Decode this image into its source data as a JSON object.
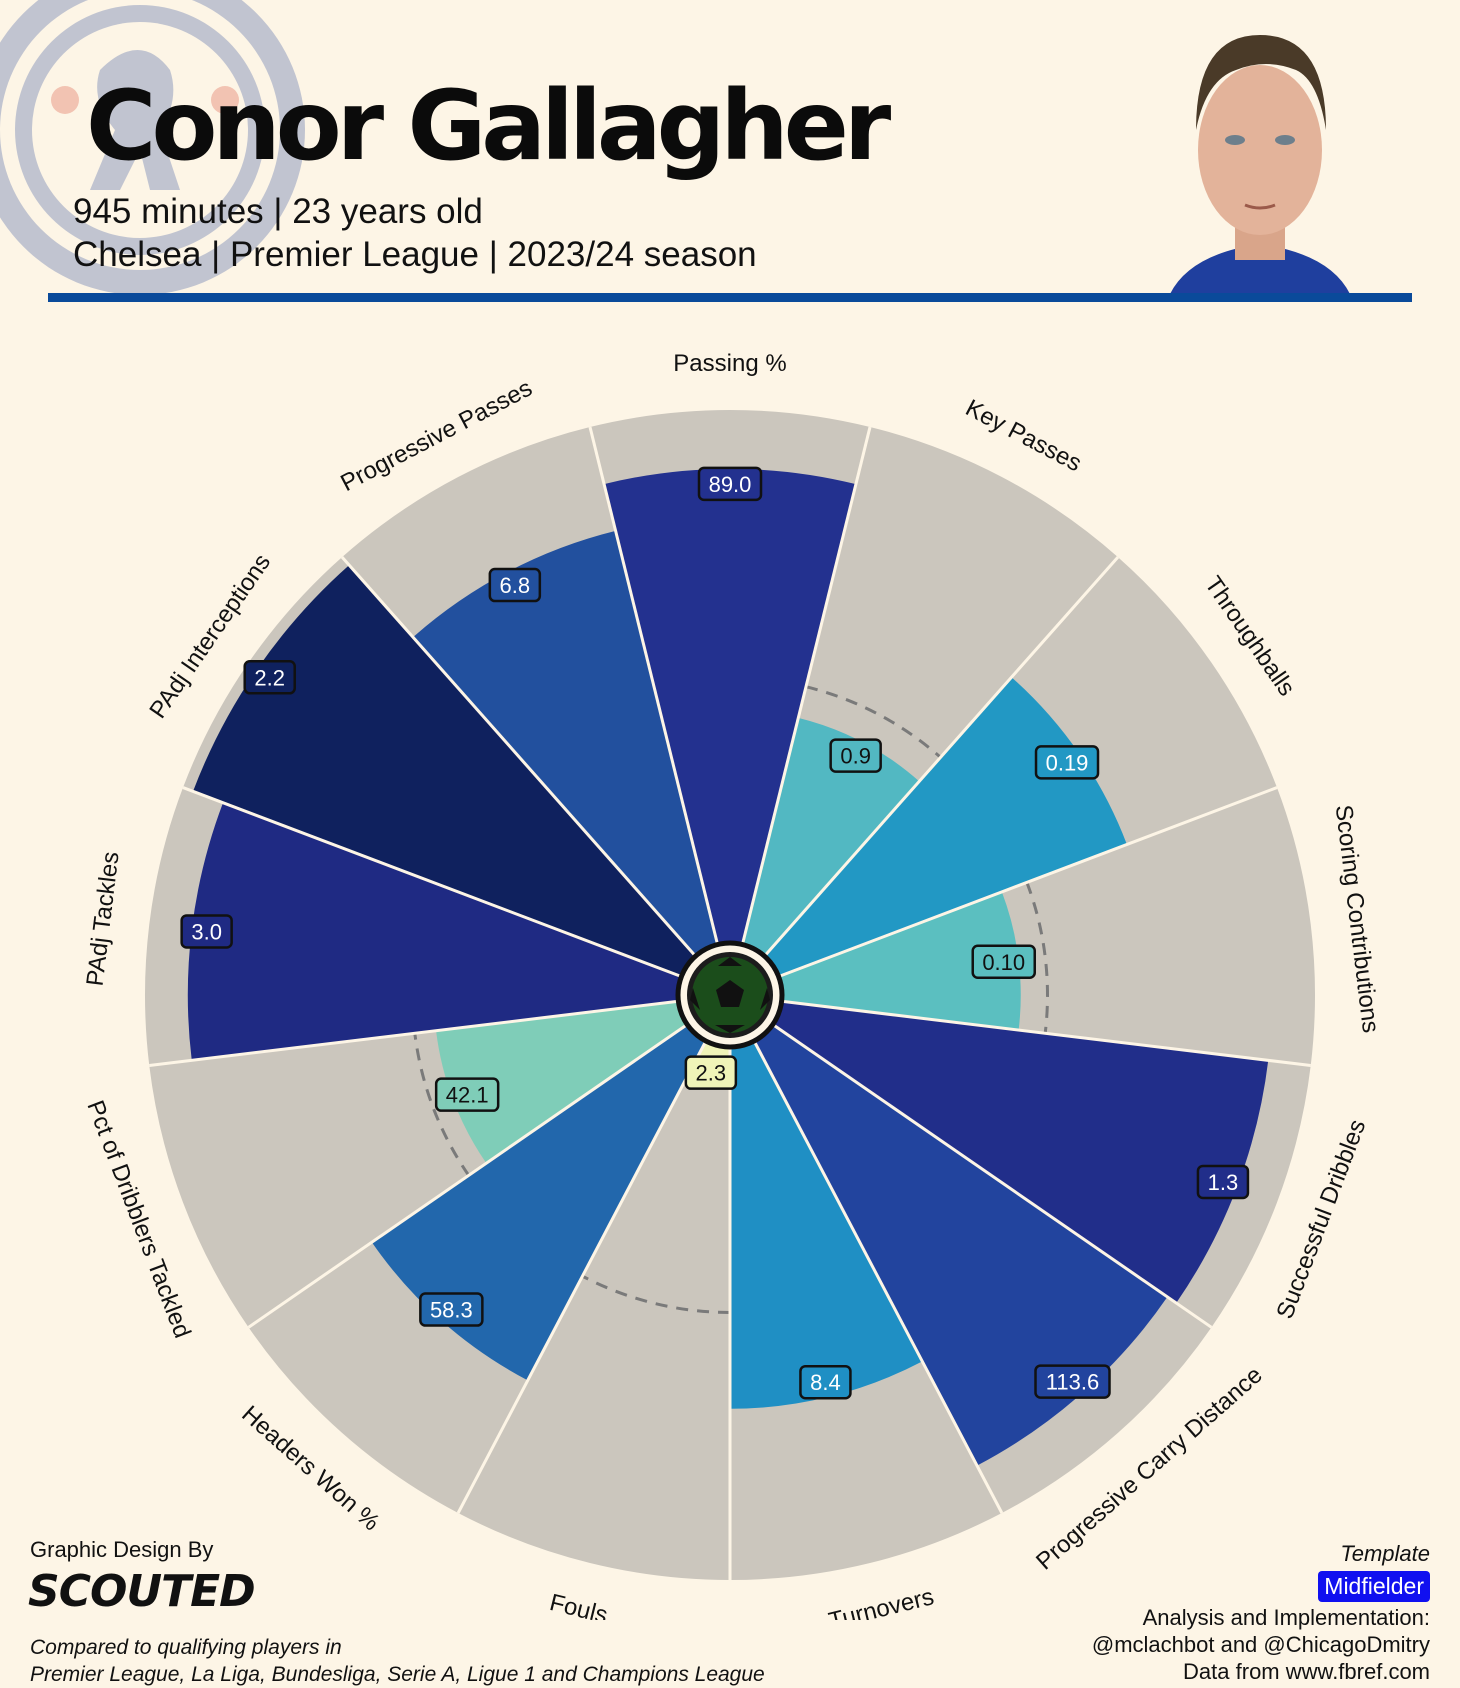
{
  "header": {
    "player_name": "Conor Gallagher",
    "subtitle_line1": "945 minutes | 23 years old",
    "subtitle_line2": "Chelsea | Premier League | 2023/24 season",
    "accent_color": "#0a4a9a"
  },
  "icons": {
    "club_crest": "chelsea-crest-icon",
    "player_photo": "player-headshot-icon",
    "center_ball": "football-icon"
  },
  "chart_data": {
    "type": "polar-bar",
    "background_color": "#cbc6bd",
    "reference_percentile": 50,
    "categories": [
      {
        "label": "Passing %",
        "value": "89.0",
        "percentile": 89,
        "color": "#23318f"
      },
      {
        "label": "Key Passes",
        "value": "0.9",
        "percentile": 44,
        "color": "#52b8c2"
      },
      {
        "label": "Throughballs",
        "value": "0.19",
        "percentile": 70,
        "color": "#2298c4"
      },
      {
        "label": "Scoring Contributions",
        "value": "0.10",
        "percentile": 45,
        "color": "#5bbfc0"
      },
      {
        "label": "Successful Dribbles",
        "value": "1.3",
        "percentile": 92,
        "color": "#212e8a"
      },
      {
        "label": "Progressive Carry Distance",
        "value": "113.6",
        "percentile": 90,
        "color": "#22449e"
      },
      {
        "label": "Turnovers",
        "value": "8.4",
        "percentile": 68,
        "color": "#1f8fc4"
      },
      {
        "label": "Fouls",
        "value": "2.3",
        "percentile": 5,
        "color": "#f0f4b8"
      },
      {
        "label": "Headers Won %",
        "value": "58.3",
        "percentile": 72,
        "color": "#2267ac"
      },
      {
        "label": "Pct of Dribblers Tackled",
        "value": "42.1",
        "percentile": 46,
        "color": "#7fcdb8"
      },
      {
        "label": "PAdj Tackles",
        "value": "3.0",
        "percentile": 92,
        "color": "#1f2a83"
      },
      {
        "label": "PAdj Interceptions",
        "value": "2.2",
        "percentile": 98,
        "color": "#0f215e"
      },
      {
        "label": "Progressive Passes",
        "value": "6.8",
        "percentile": 80,
        "color": "#22509e"
      }
    ]
  },
  "footer": {
    "credit_label": "Graphic Design By",
    "brand": "SCOUTED",
    "compare_line1": "Compared to qualifying players in",
    "compare_line2": "Premier League, La Liga, Bundesliga, Serie A, Ligue 1 and Champions League",
    "template_label": "Template",
    "template_value": "Midfielder",
    "analysis_line1": "Analysis and Implementation:",
    "analysis_line2": "@mclachbot and @ChicagoDmitry",
    "data_source": "Data from www.fbref.com"
  }
}
